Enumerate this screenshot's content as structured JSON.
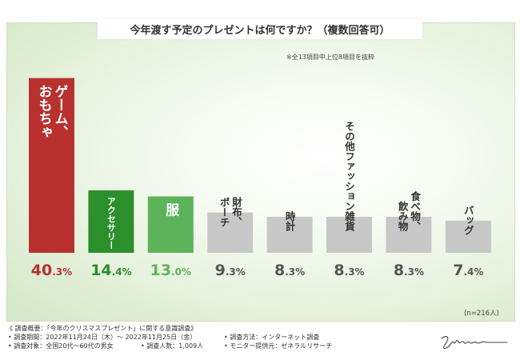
{
  "chart_data": {
    "type": "bar",
    "title": "今年渡す予定のプレゼントは何ですか？（複数回答可）",
    "note": "※全13項目中上位8項目を抜粋",
    "n_label": "(n=216人)",
    "ylim": [
      0,
      45
    ],
    "unit": "%",
    "categories": [
      "ゲーム、おもちゃ",
      "アクセサリー",
      "服",
      "財布、ポーチ",
      "時計",
      "その他ファッション雑貨",
      "食べ物、飲み物",
      "バッグ"
    ],
    "label_lines": [
      [
        "ゲーム、",
        "おもちゃ"
      ],
      [
        "アクセサリー"
      ],
      [
        "服"
      ],
      [
        "財布、",
        "ポーチ"
      ],
      [
        "時計"
      ],
      [
        "その他ファッション雑貨"
      ],
      [
        "食べ物、",
        "飲み物"
      ],
      [
        "バッグ"
      ]
    ],
    "values": [
      40.3,
      14.4,
      13.0,
      9.3,
      8.3,
      8.3,
      8.3,
      7.4
    ],
    "value_int": [
      "40",
      "14",
      "13",
      "9",
      "8",
      "8",
      "8",
      "7"
    ],
    "value_dec": [
      ".3%",
      ".4%",
      ".0%",
      ".3%",
      ".3%",
      ".3%",
      ".3%",
      ".4%"
    ],
    "bar_colors": [
      "#b8312f",
      "#2b8f2b",
      "#5cb35a",
      "#c8c8c8",
      "#c8c8c8",
      "#c8c8c8",
      "#c8c8c8",
      "#c8c8c8"
    ],
    "label_colors": [
      "#ffffff",
      "#ffffff",
      "#ffffff",
      "#333333",
      "#333333",
      "#333333",
      "#333333",
      "#333333"
    ],
    "value_colors": [
      "#b8312f",
      "#2b8f2b",
      "#5cb35a",
      "#555555",
      "#555555",
      "#555555",
      "#555555",
      "#555555"
    ]
  },
  "footer": {
    "survey_name": "《 調査概要：「今年のクリスマスプレゼント」に関する意識調査》",
    "period": "• 調査期間：2022年11月24日（木）～ 2022年11月25日（金）",
    "method": "• 調査方法：インターネット調査",
    "target": "• 調査対象：全国20代～60代の男女",
    "count": "• 調査人数：1,009人",
    "provider": "• モニター提供元：ゼネラルリサーチ"
  },
  "logo_text": "Zygen"
}
